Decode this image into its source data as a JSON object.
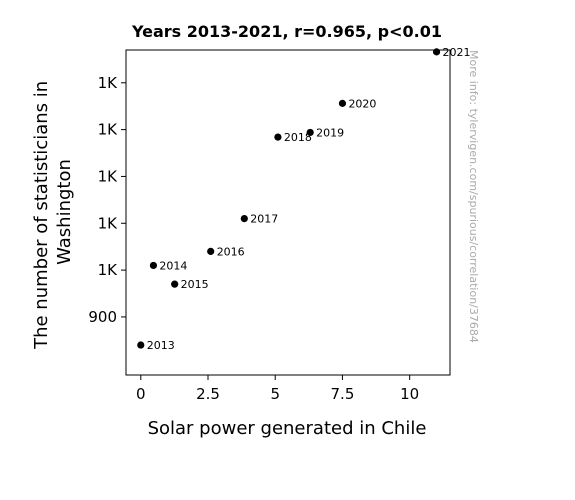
{
  "chart_data": {
    "type": "scatter",
    "title": "Years 2013-2021, r=0.965, p<0.01",
    "xlabel": "Solar power generated in Chile",
    "ylabel": "The number of statisticians in Washington",
    "ylabel_lines": [
      "The number of statisticians in",
      "Washington"
    ],
    "watermark": "More info: tylervigen.com/spurious/correlation/37684",
    "xlim": [
      -0.55,
      11.5
    ],
    "ylim": [
      838,
      1185
    ],
    "xticks": [
      {
        "value": 0,
        "label": "0"
      },
      {
        "value": 2.5,
        "label": "2.5"
      },
      {
        "value": 5,
        "label": "5"
      },
      {
        "value": 7.5,
        "label": "7.5"
      },
      {
        "value": 10,
        "label": "10"
      }
    ],
    "yticks": [
      {
        "value": 900,
        "label": "900"
      },
      {
        "value": 950,
        "label": "1K"
      },
      {
        "value": 1000,
        "label": "1K"
      },
      {
        "value": 1050,
        "label": "1K"
      },
      {
        "value": 1100,
        "label": "1K"
      },
      {
        "value": 1150,
        "label": "1K"
      }
    ],
    "points": [
      {
        "x": 0.0,
        "y": 870,
        "label": "2013"
      },
      {
        "x": 0.47,
        "y": 955,
        "label": "2014"
      },
      {
        "x": 1.26,
        "y": 935,
        "label": "2015"
      },
      {
        "x": 2.6,
        "y": 970,
        "label": "2016"
      },
      {
        "x": 3.85,
        "y": 1005,
        "label": "2017"
      },
      {
        "x": 5.1,
        "y": 1092,
        "label": "2018"
      },
      {
        "x": 6.3,
        "y": 1097,
        "label": "2019"
      },
      {
        "x": 7.5,
        "y": 1128,
        "label": "2020"
      },
      {
        "x": 11.0,
        "y": 1183,
        "label": "2021"
      }
    ],
    "marker_color": "#000000",
    "grid": false,
    "legend": "none"
  }
}
